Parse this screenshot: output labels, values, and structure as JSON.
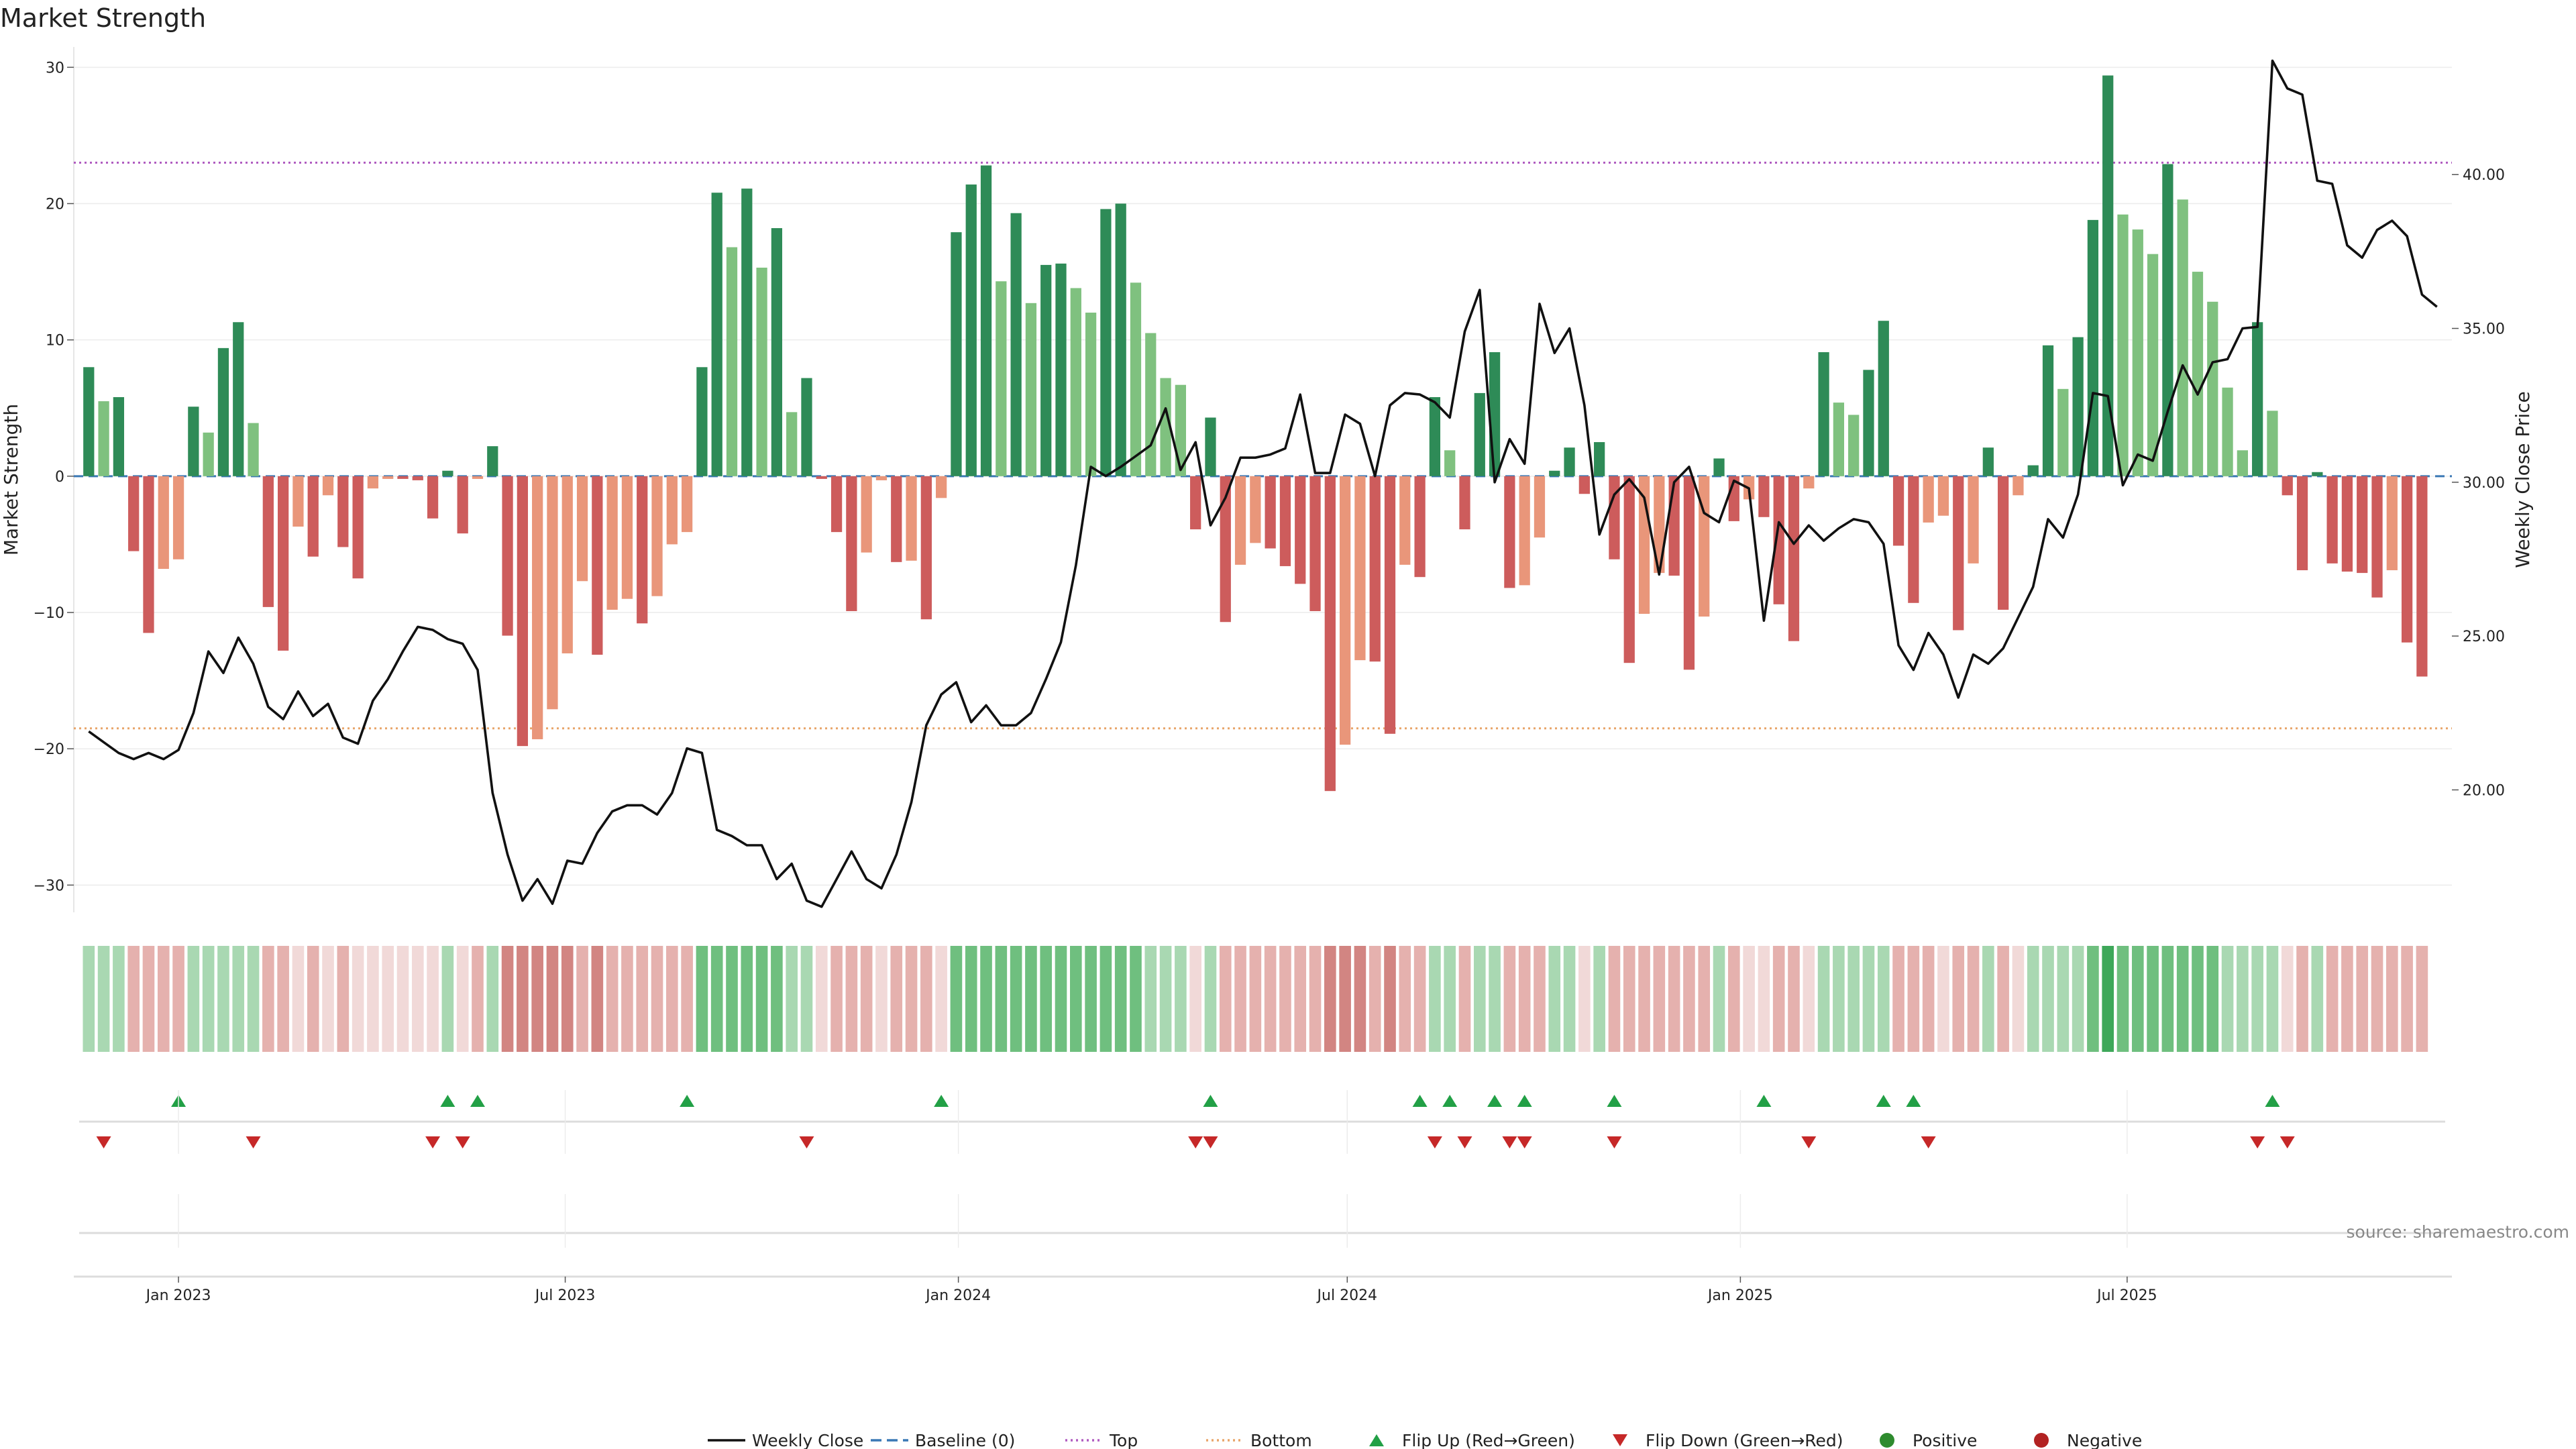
{
  "colors": {
    "green_strong": "#2e8b57",
    "green_light": "#7fc17f",
    "red_strong": "#cd5c5c",
    "orange_light": "#e9967a",
    "flip_up": "#22a046",
    "flip_down": "#c62828",
    "top_line": "#b05cc0",
    "bottom_line": "#e8a56a",
    "baseline": "#3a78b5",
    "close_line": "#111111"
  },
  "chart_data": {
    "type": "bar",
    "title": "Market Strength",
    "ylabel_left": "Market Strength",
    "ylabel_right": "Weekly Close Price",
    "left_ylim": [
      -32,
      31
    ],
    "left_ticks": [
      "30",
      "20",
      "10",
      "0",
      "−10",
      "−20",
      "−30"
    ],
    "right_ylim": [
      16.02,
      43.93
    ],
    "right_ticks": [
      "40.00",
      "35.00",
      "30.00",
      "25.00",
      "20.00"
    ],
    "x_ticks": [
      "Jan 2023",
      "Jul 2023",
      "Jan 2024",
      "Jul 2024",
      "Jan 2025",
      "Jul 2025"
    ],
    "top_threshold": 23.0,
    "bottom_threshold": -18.5,
    "source": "source: sharemaestro.com",
    "legend": [
      {
        "label": "Weekly Close",
        "kind": "line"
      },
      {
        "label": "Baseline (0)",
        "kind": "dash"
      },
      {
        "label": "Top",
        "kind": "dot_purple"
      },
      {
        "label": "Bottom",
        "kind": "dot_orange"
      },
      {
        "label": "Flip Up (Red→Green)",
        "kind": "tri_up"
      },
      {
        "label": "Flip Down (Green→Red)",
        "kind": "tri_down"
      },
      {
        "label": "Positive",
        "kind": "circle_green"
      },
      {
        "label": "Negative",
        "kind": "circle_red"
      }
    ],
    "strength": [
      8.0,
      5.5,
      5.8,
      -5.5,
      -11.5,
      -6.8,
      -6.1,
      5.1,
      3.2,
      9.4,
      11.3,
      3.9,
      -9.6,
      -12.8,
      -3.7,
      -5.9,
      -1.4,
      -5.2,
      -7.5,
      -0.9,
      -0.2,
      -0.2,
      -0.3,
      -3.1,
      0.4,
      -4.2,
      -0.2,
      2.2,
      -11.7,
      -19.8,
      -19.3,
      -17.1,
      -13.0,
      -7.7,
      -13.1,
      -9.8,
      -9.0,
      -10.8,
      -8.8,
      -5.0,
      -4.1,
      8.0,
      20.8,
      16.8,
      21.1,
      15.3,
      18.2,
      4.7,
      7.2,
      -0.2,
      -4.1,
      -9.9,
      -5.6,
      -0.3,
      -6.3,
      -6.2,
      -10.5,
      -1.6,
      17.9,
      21.4,
      22.8,
      14.3,
      19.3,
      12.7,
      15.5,
      15.6,
      13.8,
      12.0,
      19.6,
      20.0,
      14.2,
      10.5,
      7.2,
      6.7,
      -3.9,
      4.3,
      -10.7,
      -6.5,
      -4.9,
      -5.3,
      -6.6,
      -7.9,
      -9.9,
      -23.1,
      -19.7,
      -13.5,
      -13.6,
      -18.9,
      -6.5,
      -7.4,
      5.8,
      1.9,
      -3.9,
      6.1,
      9.1,
      -8.2,
      -8.0,
      -4.5,
      0.4,
      2.1,
      -1.3,
      2.5,
      -6.1,
      -13.7,
      -10.1,
      -7.1,
      -7.3,
      -14.2,
      -10.3,
      1.3,
      -3.3,
      -1.7,
      -3.0,
      -9.4,
      -12.1,
      -0.9,
      9.1,
      5.4,
      4.5,
      7.8,
      11.4,
      -5.1,
      -9.3,
      -3.4,
      -2.9,
      -11.3,
      -6.4,
      2.1,
      -9.8,
      -1.4,
      0.8,
      9.6,
      6.4,
      10.2,
      18.8,
      29.4,
      19.2,
      18.1,
      16.3,
      22.9,
      20.3,
      15.0,
      12.8,
      6.5,
      1.9,
      11.3,
      4.8,
      -1.4,
      -6.9,
      0.3,
      -6.4,
      -7.0,
      -7.1,
      -8.9,
      -6.9,
      -12.2,
      -14.7
    ],
    "close_dates": [
      "2022-11-20",
      "2022-11-27",
      "2022-12-04",
      "2022-12-11",
      "2022-12-18",
      "2022-12-25",
      "2023-01-01",
      "2023-01-08",
      "2023-01-15",
      "2023-01-22",
      "2023-01-29",
      "2023-02-05",
      "2023-02-12",
      "2023-02-19",
      "2023-02-26",
      "2023-03-05",
      "2023-03-12",
      "2023-03-19",
      "2023-03-26",
      "2023-04-02",
      "2023-04-09",
      "2023-04-16",
      "2023-04-23",
      "2023-04-30",
      "2023-05-07",
      "2023-05-14",
      "2023-05-21",
      "2023-05-28",
      "2023-06-04",
      "2023-06-11",
      "2023-06-18",
      "2023-06-25",
      "2023-07-02",
      "2023-07-09",
      "2023-07-16",
      "2023-07-23",
      "2023-07-30",
      "2023-08-06",
      "2023-08-13",
      "2023-08-20",
      "2023-08-27",
      "2023-09-03",
      "2023-09-10",
      "2023-09-17",
      "2023-09-24",
      "2023-10-01",
      "2023-10-08",
      "2023-10-15",
      "2023-10-22",
      "2023-10-29",
      "2023-11-05",
      "2023-11-12",
      "2023-11-19",
      "2023-11-26",
      "2023-12-03",
      "2023-12-10",
      "2023-12-17",
      "2023-12-24",
      "2023-12-31",
      "2024-01-07",
      "2024-01-14",
      "2024-01-21",
      "2024-01-28",
      "2024-02-04",
      "2024-02-11",
      "2024-02-18",
      "2024-02-25",
      "2024-03-03",
      "2024-03-10",
      "2024-03-17",
      "2024-03-24",
      "2024-03-31",
      "2024-04-07",
      "2024-04-14",
      "2024-04-21",
      "2024-04-28",
      "2024-05-05",
      "2024-05-12",
      "2024-05-19",
      "2024-05-26",
      "2024-06-02",
      "2024-06-09",
      "2024-06-16",
      "2024-06-23",
      "2024-06-30",
      "2024-07-07",
      "2024-07-14",
      "2024-07-21",
      "2024-07-28",
      "2024-08-04",
      "2024-08-11",
      "2024-08-18",
      "2024-08-25",
      "2024-09-01",
      "2024-09-08",
      "2024-09-15",
      "2024-09-22",
      "2024-09-29",
      "2024-10-06",
      "2024-10-13",
      "2024-10-20",
      "2024-10-27",
      "2024-11-03",
      "2024-11-10",
      "2024-11-17",
      "2024-11-24",
      "2024-12-01",
      "2024-12-08",
      "2024-12-15",
      "2024-12-22",
      "2024-12-29",
      "2025-01-05",
      "2025-01-12",
      "2025-01-19",
      "2025-01-26",
      "2025-02-02",
      "2025-02-09",
      "2025-02-16",
      "2025-02-23",
      "2025-03-02",
      "2025-03-09",
      "2025-03-16",
      "2025-03-23",
      "2025-03-30",
      "2025-04-06",
      "2025-04-13",
      "2025-04-20",
      "2025-04-27",
      "2025-05-04",
      "2025-05-11",
      "2025-05-18",
      "2025-05-25",
      "2025-06-01",
      "2025-06-08",
      "2025-06-15",
      "2025-06-22",
      "2025-06-29",
      "2025-07-06",
      "2025-07-13",
      "2025-07-20",
      "2025-07-27",
      "2025-08-03",
      "2025-08-10",
      "2025-08-17",
      "2025-08-24",
      "2025-08-31",
      "2025-09-07",
      "2025-09-14",
      "2025-09-21",
      "2025-09-28",
      "2025-10-05",
      "2025-10-12",
      "2025-10-19",
      "2025-10-26",
      "2025-11-02",
      "2025-11-09",
      "2025-11-16",
      "2025-11-23"
    ],
    "close": [
      21.9,
      21.55,
      21.2,
      21.0,
      21.2,
      21.0,
      21.3,
      22.5,
      24.5,
      23.8,
      24.95,
      24.1,
      22.7,
      22.3,
      23.2,
      22.4,
      22.8,
      21.7,
      21.5,
      22.9,
      23.6,
      24.5,
      25.3,
      25.2,
      24.9,
      24.75,
      23.9,
      19.9,
      17.9,
      16.4,
      17.1,
      16.3,
      17.7,
      17.6,
      18.6,
      19.3,
      19.5,
      19.5,
      19.2,
      19.9,
      21.35,
      21.2,
      18.7,
      18.5,
      18.2,
      18.2,
      17.1,
      17.6,
      16.4,
      16.2,
      17.1,
      18.0,
      17.1,
      16.8,
      17.9,
      19.6,
      22.1,
      23.1,
      23.5,
      22.2,
      22.75,
      22.1,
      22.1,
      22.5,
      23.6,
      24.8,
      27.3,
      30.5,
      30.2,
      30.5,
      30.85,
      31.2,
      32.4,
      30.4,
      31.3,
      28.6,
      29.5,
      30.8,
      30.8,
      30.9,
      31.1,
      32.85,
      30.3,
      30.3,
      32.2,
      31.9,
      30.2,
      32.5,
      32.9,
      32.85,
      32.6,
      32.1,
      34.9,
      36.25,
      30.0,
      31.4,
      30.6,
      35.8,
      34.2,
      35.0,
      32.5,
      28.3,
      29.6,
      30.1,
      29.5,
      27.0,
      30.0,
      30.5,
      29.0,
      28.7,
      30.05,
      29.8,
      25.5,
      28.7,
      28.0,
      28.6,
      28.1,
      28.5,
      28.8,
      28.7,
      28.0,
      24.7,
      23.9,
      25.1,
      24.4,
      23.0,
      24.4,
      24.1,
      24.6,
      25.6,
      26.6,
      28.8,
      28.2,
      29.6,
      32.9,
      32.8,
      29.9,
      30.9,
      30.7,
      32.3,
      33.8,
      32.85,
      33.9,
      34.0,
      35.0,
      35.05,
      43.7,
      42.8,
      42.6,
      39.8,
      39.7,
      37.7,
      37.3,
      38.2,
      38.5,
      38.0,
      36.1,
      35.7
    ],
    "cond_cells": [
      1,
      1,
      1,
      -2,
      -2,
      -2,
      -2,
      1,
      1,
      1,
      1,
      1,
      -2,
      -2,
      -1,
      -2,
      -1,
      -2,
      -1,
      -1,
      -1,
      -1,
      -1,
      -1,
      1,
      -1,
      -2,
      1,
      -3,
      -3,
      -3,
      -3,
      -3,
      -2,
      -3,
      -2,
      -2,
      -2,
      -2,
      -2,
      -2,
      2,
      2,
      2,
      2,
      2,
      2,
      1,
      1,
      -1,
      -2,
      -2,
      -2,
      -1,
      -2,
      -2,
      -2,
      -1,
      2,
      2,
      2,
      2,
      2,
      2,
      2,
      2,
      2,
      2,
      2,
      2,
      2,
      1,
      1,
      1,
      -1,
      1,
      -2,
      -2,
      -2,
      -2,
      -2,
      -2,
      -2,
      -3,
      -3,
      -3,
      -2,
      -3,
      -2,
      -2,
      1,
      1,
      -2,
      1,
      1,
      -2,
      -2,
      -2,
      1,
      1,
      -1,
      1,
      -2,
      -2,
      -2,
      -2,
      -2,
      -2,
      -2,
      1,
      -2,
      -1,
      -1,
      -2,
      -2,
      -1,
      1,
      1,
      1,
      1,
      1,
      -2,
      -2,
      -2,
      -1,
      -2,
      -2,
      1,
      -2,
      -1,
      1,
      1,
      1,
      1,
      2,
      3,
      2,
      2,
      2,
      2,
      2,
      2,
      2,
      1,
      1,
      1,
      1,
      -1,
      -2,
      1,
      -2,
      -2,
      -2,
      -2,
      -2,
      -2,
      -2
    ],
    "flip_up_dates": [
      "2023-01-01",
      "2023-05-07",
      "2023-05-21",
      "2023-08-27",
      "2023-12-24",
      "2024-04-28",
      "2024-08-04",
      "2024-08-18",
      "2024-09-08",
      "2024-09-22",
      "2024-11-03",
      "2025-01-12",
      "2025-03-09",
      "2025-03-23",
      "2025-09-07"
    ],
    "flip_down_dates": [
      "2022-11-27",
      "2023-02-05",
      "2023-04-30",
      "2023-05-14",
      "2023-10-22",
      "2024-04-21",
      "2024-04-28",
      "2024-08-11",
      "2024-08-25",
      "2024-09-15",
      "2024-09-22",
      "2024-11-03",
      "2025-02-02",
      "2025-03-30",
      "2025-08-31",
      "2025-09-14"
    ],
    "x_domain": [
      "2022-11-13",
      "2025-11-30"
    ]
  }
}
